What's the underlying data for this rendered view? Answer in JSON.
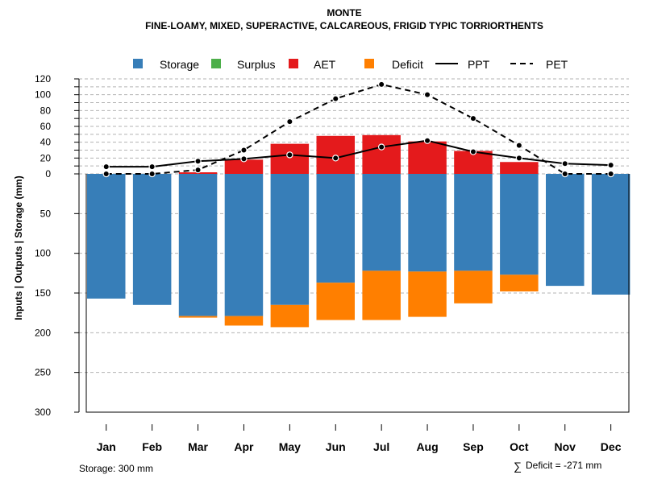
{
  "chart_data": {
    "type": "bar",
    "title": "MONTE",
    "subtitle": "FINE-LOAMY, MIXED, SUPERACTIVE, CALCAREOUS, FRIGID TYPIC TORRIORTHENTS",
    "ylabel": "Inputs | Outputs | Storage    (mm)",
    "categories": [
      "Jan",
      "Feb",
      "Mar",
      "Apr",
      "May",
      "Jun",
      "Jul",
      "Aug",
      "Sep",
      "Oct",
      "Nov",
      "Dec"
    ],
    "legend": {
      "position": "top",
      "entries": [
        {
          "name": "Storage",
          "kind": "box",
          "color": "#377EB8"
        },
        {
          "name": "Surplus",
          "kind": "box",
          "color": "#4DAF4A"
        },
        {
          "name": "AET",
          "kind": "box",
          "color": "#E41A1C"
        },
        {
          "name": "Deficit",
          "kind": "box",
          "color": "#FF7F00"
        },
        {
          "name": "PPT",
          "kind": "solid-line",
          "color": "#000000"
        },
        {
          "name": "PET",
          "kind": "dashed-line",
          "color": "#000000"
        }
      ]
    },
    "upper_axis": {
      "range": [
        0,
        120
      ],
      "ticks": [
        0,
        10,
        20,
        30,
        40,
        50,
        60,
        70,
        80,
        90,
        100,
        110,
        120
      ],
      "tick_labels": [
        "0",
        "",
        "20",
        "",
        "40",
        "",
        "60",
        "",
        "80",
        "",
        "100",
        "",
        "120"
      ]
    },
    "lower_axis": {
      "range": [
        0,
        300
      ],
      "ticks": [
        0,
        50,
        100,
        150,
        200,
        250,
        300
      ],
      "tick_labels": [
        "0",
        "50",
        "100",
        "150",
        "200",
        "250",
        "300"
      ]
    },
    "series": [
      {
        "name": "Storage",
        "color": "#377EB8",
        "values": [
          157,
          165,
          179,
          179,
          165,
          137,
          122,
          123,
          122,
          127,
          141,
          152
        ]
      },
      {
        "name": "Deficit",
        "color": "#FF7F00",
        "values": [
          0,
          0,
          2,
          12,
          28,
          47,
          62,
          57,
          41,
          21,
          0,
          0
        ]
      },
      {
        "name": "AET",
        "color": "#E41A1C",
        "values": [
          0,
          0,
          2,
          18,
          38,
          48,
          49,
          41,
          29,
          15,
          0,
          0
        ]
      },
      {
        "name": "PPT",
        "color": "#000000",
        "style": "solid",
        "values": [
          9,
          9,
          16,
          19,
          24,
          20,
          34,
          42,
          28,
          20,
          13,
          11
        ]
      },
      {
        "name": "PET",
        "color": "#000000",
        "style": "dashed",
        "values": [
          0,
          0,
          5,
          30,
          66,
          95,
          113,
          100,
          70,
          36,
          0,
          0
        ]
      }
    ],
    "footer_left": "Storage: 300 mm",
    "footer_right_symbol": "∑",
    "footer_right": "Deficit = -271 mm"
  }
}
